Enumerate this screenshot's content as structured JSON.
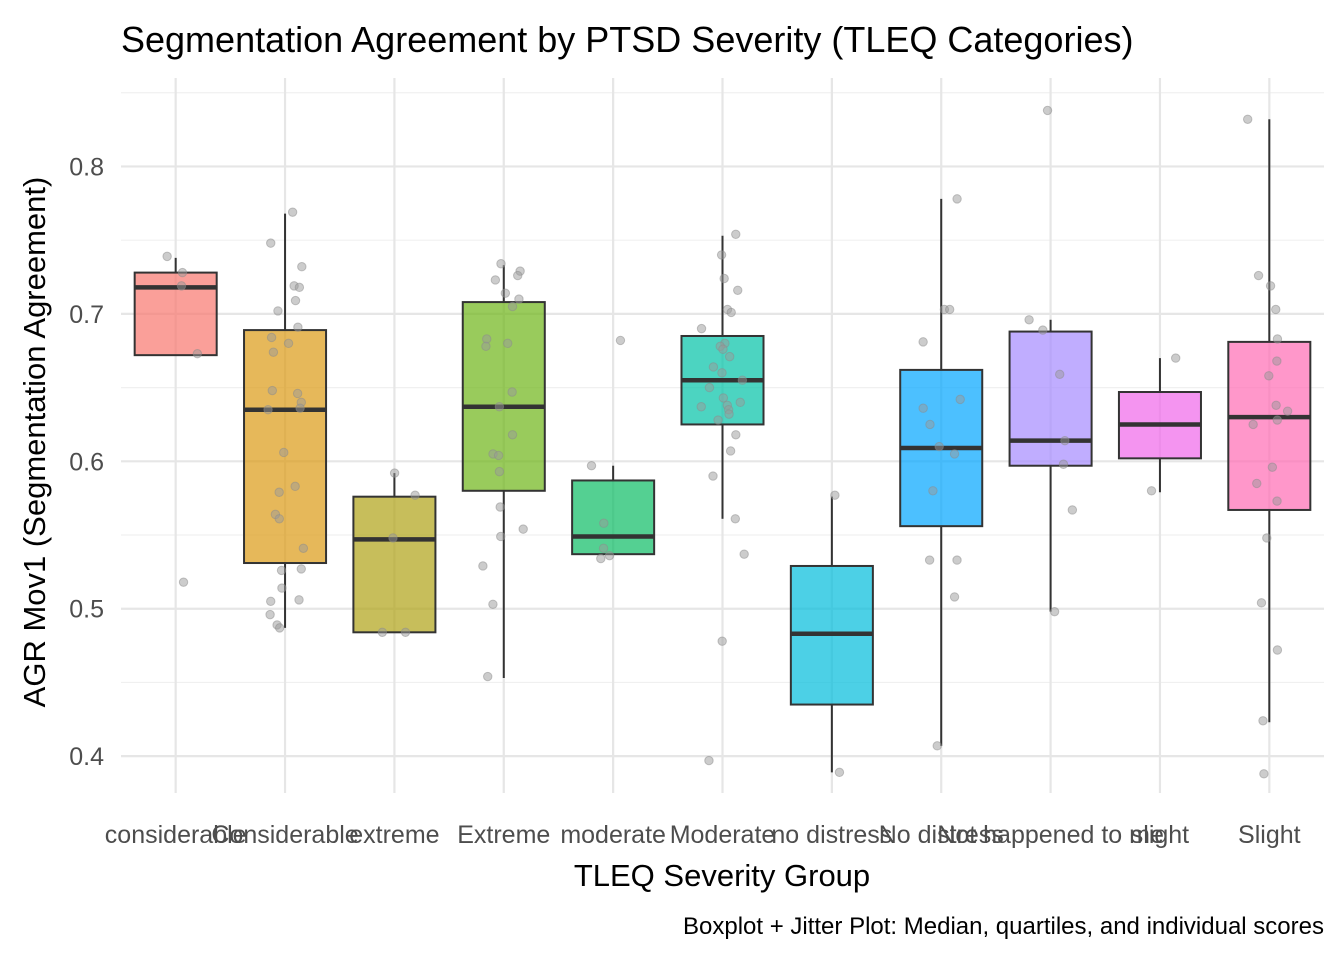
{
  "chart_data": {
    "type": "boxplot",
    "title": "Segmentation Agreement by PTSD Severity (TLEQ Categories)",
    "caption": "Boxplot + Jitter Plot: Median, quartiles, and individual scores",
    "xlabel": "TLEQ Severity Group",
    "ylabel": "AGR Mov1 (Segmentation Agreement)",
    "ylim": [
      0.375,
      0.86
    ],
    "yticks": [
      0.4,
      0.5,
      0.6,
      0.7,
      0.8
    ],
    "ytick_labels": [
      "0.4",
      "0.5",
      "0.6",
      "0.7",
      "0.8"
    ],
    "grid": true,
    "legend": "none",
    "categories": [
      "considerable",
      "Considerable",
      "extreme",
      "Extreme",
      "moderate",
      "Moderate",
      "no distress",
      "No distress",
      "Not happened to me",
      "slight",
      "Slight"
    ],
    "boxes": [
      {
        "category": "considerable",
        "color": "#F8766D",
        "lower_whisker": 0.672,
        "q1": 0.672,
        "median": 0.718,
        "q3": 0.728,
        "upper_whisker": 0.738
      },
      {
        "category": "Considerable",
        "color": "#DB9A14",
        "lower_whisker": 0.487,
        "q1": 0.531,
        "median": 0.635,
        "q3": 0.689,
        "upper_whisker": 0.768
      },
      {
        "category": "extreme",
        "color": "#AFA316",
        "lower_whisker": 0.484,
        "q1": 0.484,
        "median": 0.547,
        "q3": 0.576,
        "upper_whisker": 0.592
      },
      {
        "category": "Extreme",
        "color": "#6EB517",
        "lower_whisker": 0.453,
        "q1": 0.58,
        "median": 0.637,
        "q3": 0.708,
        "upper_whisker": 0.733
      },
      {
        "category": "moderate",
        "color": "#0BBC64",
        "lower_whisker": 0.537,
        "q1": 0.537,
        "median": 0.549,
        "q3": 0.587,
        "upper_whisker": 0.597
      },
      {
        "category": "Moderate",
        "color": "#00C2A7",
        "lower_whisker": 0.561,
        "q1": 0.625,
        "median": 0.655,
        "q3": 0.685,
        "upper_whisker": 0.753
      },
      {
        "category": "no distress",
        "color": "#00BCDB",
        "lower_whisker": 0.389,
        "q1": 0.435,
        "median": 0.483,
        "q3": 0.529,
        "upper_whisker": 0.576
      },
      {
        "category": "No distress",
        "color": "#00A5FF",
        "lower_whisker": 0.407,
        "q1": 0.556,
        "median": 0.609,
        "q3": 0.662,
        "upper_whisker": 0.778
      },
      {
        "category": "Not happened to me",
        "color": "#A58AFF",
        "lower_whisker": 0.498,
        "q1": 0.597,
        "median": 0.614,
        "q3": 0.688,
        "upper_whisker": 0.696
      },
      {
        "category": "slight",
        "color": "#F066EA",
        "lower_whisker": 0.579,
        "q1": 0.602,
        "median": 0.625,
        "q3": 0.647,
        "upper_whisker": 0.67
      },
      {
        "category": "Slight",
        "color": "#FF6BB4",
        "lower_whisker": 0.423,
        "q1": 0.567,
        "median": 0.63,
        "q3": 0.681,
        "upper_whisker": 0.832
      }
    ],
    "points": [
      {
        "category": "considerable",
        "values": [
          0.728,
          0.739,
          0.719,
          0.673,
          0.518
        ]
      },
      {
        "category": "Considerable",
        "values": [
          0.769,
          0.748,
          0.732,
          0.719,
          0.718,
          0.709,
          0.702,
          0.691,
          0.684,
          0.68,
          0.674,
          0.648,
          0.646,
          0.64,
          0.636,
          0.635,
          0.606,
          0.583,
          0.579,
          0.564,
          0.561,
          0.541,
          0.527,
          0.526,
          0.514,
          0.506,
          0.505,
          0.496,
          0.489,
          0.487
        ]
      },
      {
        "category": "extreme",
        "values": [
          0.592,
          0.577,
          0.548,
          0.484,
          0.484
        ]
      },
      {
        "category": "Extreme",
        "values": [
          0.734,
          0.729,
          0.726,
          0.723,
          0.714,
          0.71,
          0.705,
          0.683,
          0.68,
          0.678,
          0.647,
          0.637,
          0.618,
          0.605,
          0.604,
          0.593,
          0.569,
          0.554,
          0.549,
          0.529,
          0.503,
          0.454
        ]
      },
      {
        "category": "moderate",
        "values": [
          0.682,
          0.597,
          0.558,
          0.541,
          0.536,
          0.534
        ]
      },
      {
        "category": "Moderate",
        "values": [
          0.754,
          0.74,
          0.724,
          0.716,
          0.703,
          0.701,
          0.69,
          0.68,
          0.678,
          0.676,
          0.671,
          0.664,
          0.66,
          0.655,
          0.65,
          0.643,
          0.64,
          0.638,
          0.637,
          0.635,
          0.632,
          0.628,
          0.618,
          0.607,
          0.59,
          0.561,
          0.537,
          0.478,
          0.397
        ]
      },
      {
        "category": "no distress",
        "values": [
          0.577,
          0.389
        ]
      },
      {
        "category": "No distress",
        "values": [
          0.778,
          0.703,
          0.703,
          0.681,
          0.642,
          0.636,
          0.625,
          0.61,
          0.605,
          0.58,
          0.533,
          0.533,
          0.508,
          0.407
        ]
      },
      {
        "category": "Not happened to me",
        "values": [
          0.838,
          0.696,
          0.689,
          0.659,
          0.614,
          0.598,
          0.567,
          0.498
        ]
      },
      {
        "category": "slight",
        "values": [
          0.67,
          0.58
        ]
      },
      {
        "category": "Slight",
        "values": [
          0.832,
          0.726,
          0.719,
          0.703,
          0.683,
          0.668,
          0.658,
          0.638,
          0.634,
          0.628,
          0.625,
          0.596,
          0.585,
          0.573,
          0.548,
          0.504,
          0.472,
          0.424,
          0.388
        ]
      }
    ]
  }
}
